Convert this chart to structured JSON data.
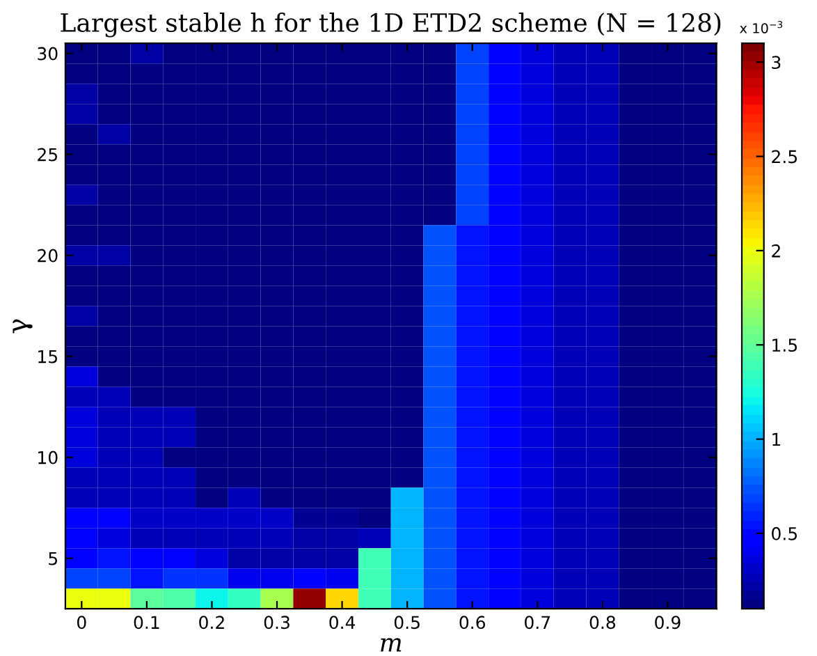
{
  "chart_data": {
    "type": "heatmap",
    "title": "Largest stable h for the 1D ETD2 scheme (N = 128)",
    "xlabel": "m",
    "ylabel": "γ",
    "annotations": [
      "x 10$^{−3}$"
    ],
    "x": [
      0,
      0.05,
      0.1,
      0.15,
      0.2,
      0.25,
      0.3,
      0.35,
      0.4,
      0.45,
      0.5,
      0.55,
      0.6,
      0.65,
      0.7,
      0.75,
      0.8,
      0.85,
      0.9,
      0.95
    ],
    "y": [
      30,
      29,
      28,
      27,
      26,
      25,
      24,
      23,
      22,
      21,
      20,
      19,
      18,
      17,
      16,
      15,
      14,
      13,
      12,
      11,
      10,
      9,
      8,
      7,
      6,
      5,
      4,
      3
    ],
    "xlim": [
      -0.025,
      0.975
    ],
    "ylim": [
      2.5,
      30.5
    ],
    "xticks": [
      0,
      0.1,
      0.2,
      0.3,
      0.4,
      0.5,
      0.6,
      0.7,
      0.8,
      0.9
    ],
    "yticks": [
      5,
      10,
      15,
      20,
      25,
      30
    ],
    "clim": [
      0.1,
      3.1
    ],
    "cticks": [
      0.5,
      1,
      1.5,
      2,
      2.5,
      3
    ],
    "cells": [
      [
        0.12,
        0.12,
        0.2,
        0.12,
        0.12,
        0.12,
        0.12,
        0.12,
        0.12,
        0.12,
        0.12,
        0.12,
        0.68,
        0.45,
        0.38,
        0.28,
        0.28,
        0.12,
        0.12,
        0.12
      ],
      [
        0.12,
        0.12,
        0.12,
        0.12,
        0.12,
        0.12,
        0.12,
        0.12,
        0.12,
        0.12,
        0.12,
        0.12,
        0.68,
        0.45,
        0.38,
        0.28,
        0.28,
        0.12,
        0.12,
        0.12
      ],
      [
        0.2,
        0.12,
        0.12,
        0.12,
        0.12,
        0.12,
        0.12,
        0.12,
        0.12,
        0.12,
        0.12,
        0.12,
        0.68,
        0.45,
        0.38,
        0.28,
        0.28,
        0.12,
        0.12,
        0.12
      ],
      [
        0.2,
        0.12,
        0.12,
        0.12,
        0.12,
        0.12,
        0.12,
        0.12,
        0.12,
        0.12,
        0.12,
        0.12,
        0.68,
        0.45,
        0.38,
        0.28,
        0.28,
        0.12,
        0.12,
        0.12
      ],
      [
        0.12,
        0.2,
        0.12,
        0.12,
        0.12,
        0.12,
        0.12,
        0.12,
        0.12,
        0.12,
        0.12,
        0.12,
        0.68,
        0.45,
        0.38,
        0.28,
        0.28,
        0.12,
        0.12,
        0.12
      ],
      [
        0.12,
        0.12,
        0.12,
        0.12,
        0.12,
        0.12,
        0.12,
        0.12,
        0.12,
        0.12,
        0.12,
        0.12,
        0.68,
        0.45,
        0.38,
        0.28,
        0.28,
        0.12,
        0.12,
        0.12
      ],
      [
        0.12,
        0.12,
        0.12,
        0.12,
        0.12,
        0.12,
        0.12,
        0.12,
        0.12,
        0.12,
        0.12,
        0.12,
        0.68,
        0.45,
        0.38,
        0.28,
        0.28,
        0.12,
        0.12,
        0.12
      ],
      [
        0.2,
        0.12,
        0.12,
        0.12,
        0.12,
        0.12,
        0.12,
        0.12,
        0.12,
        0.12,
        0.12,
        0.12,
        0.68,
        0.45,
        0.38,
        0.28,
        0.28,
        0.12,
        0.12,
        0.12
      ],
      [
        0.12,
        0.12,
        0.12,
        0.12,
        0.12,
        0.12,
        0.12,
        0.12,
        0.12,
        0.12,
        0.12,
        0.12,
        0.68,
        0.45,
        0.38,
        0.28,
        0.28,
        0.12,
        0.12,
        0.12
      ],
      [
        0.12,
        0.12,
        0.12,
        0.12,
        0.12,
        0.12,
        0.12,
        0.12,
        0.12,
        0.12,
        0.12,
        0.72,
        0.55,
        0.45,
        0.38,
        0.28,
        0.28,
        0.12,
        0.12,
        0.12
      ],
      [
        0.2,
        0.2,
        0.12,
        0.12,
        0.12,
        0.12,
        0.12,
        0.12,
        0.12,
        0.12,
        0.12,
        0.72,
        0.55,
        0.45,
        0.38,
        0.28,
        0.28,
        0.12,
        0.12,
        0.12
      ],
      [
        0.12,
        0.12,
        0.12,
        0.12,
        0.12,
        0.12,
        0.12,
        0.12,
        0.12,
        0.12,
        0.12,
        0.72,
        0.55,
        0.45,
        0.38,
        0.28,
        0.28,
        0.12,
        0.12,
        0.12
      ],
      [
        0.12,
        0.12,
        0.12,
        0.12,
        0.12,
        0.12,
        0.12,
        0.12,
        0.12,
        0.12,
        0.12,
        0.72,
        0.55,
        0.45,
        0.38,
        0.28,
        0.28,
        0.12,
        0.12,
        0.12
      ],
      [
        0.2,
        0.12,
        0.12,
        0.12,
        0.12,
        0.12,
        0.12,
        0.12,
        0.12,
        0.12,
        0.12,
        0.72,
        0.55,
        0.45,
        0.38,
        0.28,
        0.28,
        0.12,
        0.12,
        0.12
      ],
      [
        0.12,
        0.12,
        0.12,
        0.12,
        0.12,
        0.12,
        0.12,
        0.12,
        0.12,
        0.12,
        0.12,
        0.72,
        0.55,
        0.45,
        0.38,
        0.28,
        0.28,
        0.12,
        0.12,
        0.12
      ],
      [
        0.12,
        0.12,
        0.12,
        0.12,
        0.12,
        0.12,
        0.12,
        0.12,
        0.12,
        0.12,
        0.12,
        0.72,
        0.55,
        0.45,
        0.38,
        0.28,
        0.28,
        0.12,
        0.12,
        0.12
      ],
      [
        0.38,
        0.12,
        0.12,
        0.12,
        0.12,
        0.12,
        0.12,
        0.12,
        0.12,
        0.12,
        0.12,
        0.72,
        0.55,
        0.45,
        0.38,
        0.28,
        0.28,
        0.12,
        0.12,
        0.12
      ],
      [
        0.28,
        0.28,
        0.12,
        0.12,
        0.12,
        0.12,
        0.12,
        0.12,
        0.12,
        0.12,
        0.12,
        0.72,
        0.55,
        0.45,
        0.38,
        0.28,
        0.28,
        0.12,
        0.12,
        0.12
      ],
      [
        0.38,
        0.28,
        0.28,
        0.28,
        0.12,
        0.12,
        0.12,
        0.12,
        0.12,
        0.12,
        0.12,
        0.72,
        0.55,
        0.45,
        0.38,
        0.28,
        0.28,
        0.12,
        0.12,
        0.12
      ],
      [
        0.38,
        0.28,
        0.28,
        0.28,
        0.12,
        0.12,
        0.12,
        0.12,
        0.12,
        0.12,
        0.12,
        0.72,
        0.55,
        0.45,
        0.38,
        0.28,
        0.28,
        0.12,
        0.12,
        0.12
      ],
      [
        0.38,
        0.28,
        0.28,
        0.12,
        0.12,
        0.12,
        0.12,
        0.12,
        0.12,
        0.12,
        0.12,
        0.72,
        0.55,
        0.45,
        0.38,
        0.28,
        0.28,
        0.12,
        0.12,
        0.12
      ],
      [
        0.28,
        0.28,
        0.28,
        0.28,
        0.12,
        0.12,
        0.12,
        0.12,
        0.12,
        0.12,
        0.12,
        0.72,
        0.55,
        0.45,
        0.38,
        0.28,
        0.28,
        0.12,
        0.12,
        0.12
      ],
      [
        0.28,
        0.28,
        0.28,
        0.28,
        0.12,
        0.28,
        0.12,
        0.12,
        0.12,
        0.12,
        1.03,
        0.72,
        0.55,
        0.45,
        0.38,
        0.28,
        0.28,
        0.12,
        0.12,
        0.12
      ],
      [
        0.45,
        0.45,
        0.3,
        0.3,
        0.3,
        0.3,
        0.3,
        0.15,
        0.15,
        0.12,
        1.03,
        0.72,
        0.55,
        0.45,
        0.38,
        0.28,
        0.28,
        0.12,
        0.12,
        0.12
      ],
      [
        0.47,
        0.35,
        0.25,
        0.25,
        0.25,
        0.25,
        0.25,
        0.2,
        0.2,
        0.25,
        1.03,
        0.72,
        0.55,
        0.45,
        0.38,
        0.28,
        0.28,
        0.12,
        0.12,
        0.12
      ],
      [
        0.45,
        0.55,
        0.47,
        0.47,
        0.35,
        0.2,
        0.2,
        0.2,
        0.2,
        1.4,
        1.03,
        0.72,
        0.55,
        0.45,
        0.38,
        0.28,
        0.28,
        0.12,
        0.12,
        0.12
      ],
      [
        0.7,
        0.7,
        0.55,
        0.62,
        0.62,
        0.42,
        0.42,
        0.5,
        0.42,
        1.4,
        1.03,
        0.72,
        0.55,
        0.45,
        0.38,
        0.28,
        0.28,
        0.12,
        0.12,
        0.12
      ],
      [
        2.0,
        2.0,
        1.5,
        1.42,
        1.22,
        1.33,
        1.75,
        3.05,
        2.15,
        1.4,
        1.03,
        0.72,
        0.55,
        0.45,
        0.38,
        0.28,
        0.28,
        0.12,
        0.12,
        0.12
      ]
    ]
  }
}
